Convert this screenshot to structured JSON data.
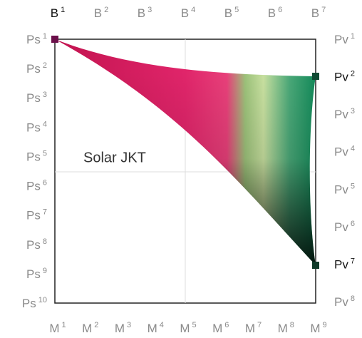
{
  "diagram": {
    "label": "Solar JKT",
    "top": [
      {
        "text": "B",
        "sup": "1",
        "active": true
      },
      {
        "text": "B",
        "sup": "2"
      },
      {
        "text": "B",
        "sup": "3"
      },
      {
        "text": "B",
        "sup": "4"
      },
      {
        "text": "B",
        "sup": "5"
      },
      {
        "text": "B",
        "sup": "6"
      },
      {
        "text": "B",
        "sup": "7"
      }
    ],
    "bottom": [
      {
        "text": "M",
        "sup": "1"
      },
      {
        "text": "M",
        "sup": "2"
      },
      {
        "text": "M",
        "sup": "3"
      },
      {
        "text": "M",
        "sup": "4"
      },
      {
        "text": "M",
        "sup": "5"
      },
      {
        "text": "M",
        "sup": "6"
      },
      {
        "text": "M",
        "sup": "7"
      },
      {
        "text": "M",
        "sup": "8"
      },
      {
        "text": "M",
        "sup": "9"
      }
    ],
    "left": [
      {
        "text": "Ps",
        "sup": "1"
      },
      {
        "text": "Ps",
        "sup": "2"
      },
      {
        "text": "Ps",
        "sup": "3"
      },
      {
        "text": "Ps",
        "sup": "4"
      },
      {
        "text": "Ps",
        "sup": "5"
      },
      {
        "text": "Ps",
        "sup": "6"
      },
      {
        "text": "Ps",
        "sup": "7"
      },
      {
        "text": "Ps",
        "sup": "8"
      },
      {
        "text": "Ps",
        "sup": "9"
      },
      {
        "text": "Ps",
        "sup": "10"
      }
    ],
    "right": [
      {
        "text": "Pv",
        "sup": "1"
      },
      {
        "text": "Pv",
        "sup": "2",
        "active": true
      },
      {
        "text": "Pv",
        "sup": "3"
      },
      {
        "text": "Pv",
        "sup": "4"
      },
      {
        "text": "Pv",
        "sup": "5"
      },
      {
        "text": "Pv",
        "sup": "6"
      },
      {
        "text": "Pv",
        "sup": "7",
        "active": true
      },
      {
        "text": "Pv",
        "sup": "8"
      }
    ]
  }
}
